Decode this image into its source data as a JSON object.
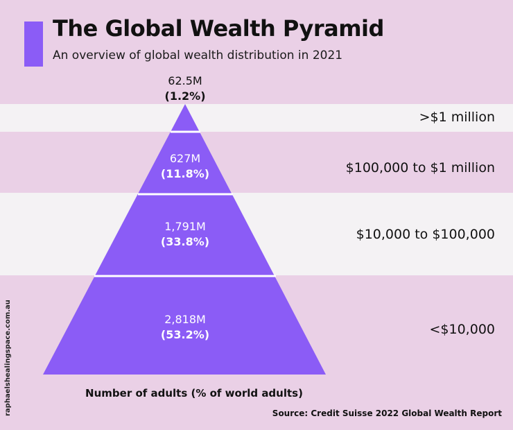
{
  "header": {
    "title": "The Global Wealth Pyramid",
    "subtitle": "An overview of global wealth distribution in 2021"
  },
  "chart_data": {
    "type": "pyramid",
    "title": "The Global Wealth Pyramid",
    "subtitle": "An overview of global wealth distribution in 2021",
    "xlabel": "Number of adults (% of world adults)",
    "categories": [
      ">$1 million",
      "$100,000 to $1 million",
      "$10,000 to $100,000",
      "<$10,000"
    ],
    "values": [
      62.5,
      627,
      1791,
      2818
    ],
    "value_unit": "million adults",
    "percentages": [
      1.2,
      11.8,
      33.8,
      53.2
    ],
    "value_labels": [
      "62.5M",
      "627M",
      "1,791M",
      "2,818M"
    ],
    "percent_labels": [
      "(1.2%)",
      "(11.8%)",
      "(33.8%)",
      "(53.2%)"
    ]
  },
  "footer": {
    "xlabel": "Number of adults (% of world adults)",
    "source": "Source: Credit Suisse 2022 Global Wealth Report",
    "watermark": "raphaelshealingspace.com.au"
  },
  "colors": {
    "background": "#ead0e6",
    "band_light": "#f4f2f4",
    "pyramid": "#8b5cf6",
    "divider": "#ffffff"
  }
}
